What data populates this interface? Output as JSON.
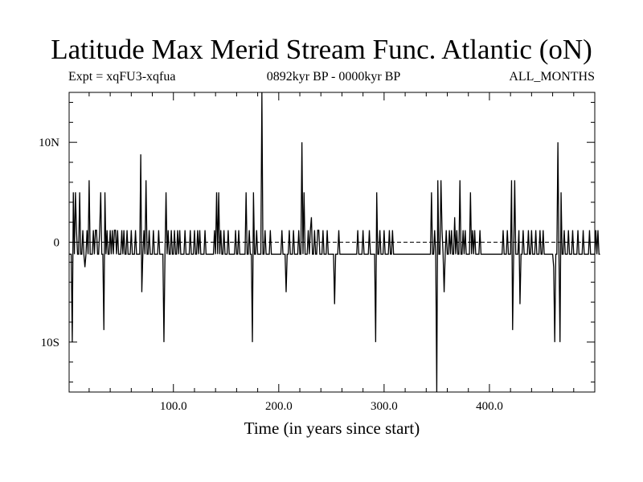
{
  "chart_data": {
    "type": "line",
    "title": "Latitude Max Merid Stream Func. Atlantic (oN)",
    "subtitle_left": "Expt = xqFU3-xqfua",
    "subtitle_center": "0892kyr BP - 0000kyr BP",
    "subtitle_right": "ALL_MONTHS",
    "xlabel": "Time (in years since start)",
    "ylabel": "",
    "xlim": [
      1,
      500
    ],
    "ylim": [
      -15,
      15
    ],
    "x_ticks": [
      100,
      200,
      300,
      400
    ],
    "x_tick_labels": [
      "100.0",
      "200.0",
      "300.0",
      "400.0"
    ],
    "y_ticks": [
      -10,
      0,
      10
    ],
    "y_tick_labels": [
      "10S",
      "0",
      "10N"
    ],
    "zero_line": true,
    "series": [
      {
        "x_start": 1,
        "x_step": 1,
        "values": [
          -1.2,
          -1.2,
          -1.2,
          -10,
          5,
          -1.2,
          5,
          1.2,
          -1.2,
          -1.2,
          5,
          -1.2,
          -1.2,
          1.2,
          -1.2,
          -2.5,
          -1.2,
          1.2,
          -1.2,
          6.2,
          -1.2,
          -1.2,
          -1.2,
          1.2,
          -1.2,
          1.2,
          1.2,
          -1.2,
          -1.2,
          1.2,
          5,
          -1.2,
          -1.2,
          -8.8,
          5,
          -1.2,
          1.2,
          -1.2,
          -1.2,
          1.2,
          -1.2,
          1.2,
          -1.2,
          1.2,
          1.2,
          -1.2,
          1.2,
          -1.2,
          -1.2,
          -1.2,
          1.2,
          -1.2,
          1.2,
          -1.2,
          -1.2,
          1.2,
          -1.2,
          -1.2,
          -1.2,
          1.2,
          -1.2,
          -1.2,
          -1.2,
          1.2,
          -1.2,
          -1.2,
          -1.2,
          -1.2,
          8.8,
          -5,
          -1.2,
          1.2,
          -1.2,
          6.2,
          -1.2,
          -1.2,
          1.2,
          -1.2,
          -1.2,
          -1.2,
          1.2,
          -1.2,
          -1.2,
          -1.2,
          -1.2,
          1.2,
          -1.2,
          -1.2,
          -1.2,
          -1.2,
          -10,
          -1.2,
          5,
          -1.2,
          1.2,
          -1.2,
          -1.2,
          1.2,
          -1.2,
          -1.2,
          1.2,
          -1.2,
          -1.2,
          1.2,
          -1.2,
          1.2,
          -1.2,
          -1.2,
          -1.2,
          -1.2,
          1.2,
          -1.2,
          -1.2,
          -1.2,
          -1.2,
          1.2,
          -1.2,
          -1.2,
          -1.2,
          1.2,
          -1.2,
          -1.2,
          1.2,
          -1.2,
          1.2,
          -1.2,
          -1.2,
          -1.2,
          -1.2,
          1.2,
          -1.2,
          -1.2,
          -1.2,
          -1.2,
          -1.2,
          -1.2,
          -1.2,
          -1.2,
          1.2,
          -1.2,
          5,
          -1.2,
          5,
          -1.2,
          1.2,
          -1.2,
          -1.2,
          1.2,
          -1.2,
          -1.2,
          -1.2,
          1.2,
          -1.2,
          -1.2,
          -1.2,
          -1.2,
          -1.2,
          -1.2,
          1.2,
          -1.2,
          -1.2,
          1.2,
          -1.2,
          -1.2,
          -1.2,
          -1.2,
          -1.2,
          -1.2,
          5,
          -1.2,
          -1.2,
          1.2,
          -1.2,
          -1.2,
          -10,
          5,
          -1.2,
          -1.2,
          1.2,
          -1.2,
          -1.2,
          -1.2,
          -1.2,
          15,
          -1.2,
          -1.2,
          1.2,
          -1.2,
          -1.2,
          -1.2,
          -1.2,
          1.2,
          -1.2,
          -1.2,
          -1.2,
          -1.2,
          -1.2,
          -1.2,
          -1.2,
          -1.2,
          -1.2,
          -1.2,
          1.2,
          -1.2,
          -1.2,
          -1.2,
          -5,
          -1.2,
          -1.2,
          1.2,
          -1.2,
          -1.2,
          -1.2,
          1.2,
          -1.2,
          -1.2,
          -1.2,
          -1.2,
          1.2,
          -1.2,
          -1.2,
          10,
          -1.2,
          5,
          -1.2,
          -1.2,
          -1.2,
          1.2,
          -1.2,
          1.2,
          2.5,
          -1.2,
          -1.2,
          1.2,
          -1.2,
          -1.2,
          1.2,
          1.2,
          -1.2,
          -1.2,
          -1.2,
          1.2,
          -1.2,
          -1.2,
          -1.2,
          1.2,
          -1.2,
          -1.2,
          -1.2,
          -1.2,
          -1.2,
          -1.2,
          -6.2,
          -1.2,
          -1.2,
          -1.2,
          1.2,
          -1.2,
          -1.2,
          -1.2,
          -1.2,
          -1.2,
          -1.2,
          -1.2,
          -1.2,
          -1.2,
          -1.2,
          -1.2,
          -1.2,
          -1.2,
          -1.2,
          -1.2,
          -1.2,
          -1.2,
          1.2,
          -1.2,
          -1.2,
          -1.2,
          -1.2,
          1.2,
          -1.2,
          -1.2,
          -1.2,
          -1.2,
          -1.2,
          1.2,
          -1.2,
          -1.2,
          -1.2,
          -1.2,
          -1.2,
          -10,
          5,
          -1.2,
          -1.2,
          1.2,
          -1.2,
          -1.2,
          -1.2,
          1.2,
          -1.2,
          -1.2,
          -1.2,
          -1.2,
          1.2,
          -1.2,
          -1.2,
          1.2,
          -1.2,
          -1.2,
          -1.2,
          -1.2,
          -1.2,
          -1.2,
          -1.2,
          -1.2,
          -1.2,
          -1.2,
          -1.2,
          -1.2,
          -1.2,
          -1.2,
          -1.2,
          -1.2,
          -1.2,
          -1.2,
          -1.2,
          -1.2,
          -1.2,
          -1.2,
          -1.2,
          -1.2,
          -1.2,
          -1.2,
          -1.2,
          -1.2,
          -1.2,
          -1.2,
          -1.2,
          -1.2,
          -1.2,
          -1.2,
          -1.2,
          -1.2,
          5,
          -1.2,
          -1.2,
          1.2,
          -1.2,
          -15,
          6.2,
          -1.2,
          -1.2,
          6.2,
          1.2,
          -1.2,
          -5,
          -1.2,
          1.2,
          -1.2,
          -1.2,
          1.2,
          -1.2,
          1.2,
          -1.2,
          -1.2,
          2.5,
          -1.2,
          1.2,
          -1.2,
          -1.2,
          6.2,
          -1.2,
          -1.2,
          1.2,
          -1.2,
          1.2,
          -1.2,
          -1.2,
          -1.2,
          -1.2,
          5,
          -1.2,
          1.2,
          -1.2,
          1.2,
          -1.2,
          -1.2,
          -1.2,
          -1.2,
          1.2,
          -1.2,
          -1.2,
          -1.2,
          -1.2,
          -1.2,
          -1.2,
          -1.2,
          -1.2,
          -1.2,
          -1.2,
          -1.2,
          -1.2,
          -1.2,
          -1.2,
          -1.2,
          -1.2,
          -1.2,
          -1.2,
          -1.2,
          -1.2,
          -1.2,
          1.2,
          -1.2,
          -1.2,
          -1.2,
          1.2,
          -1.2,
          -1.2,
          -1.2,
          6.2,
          -8.8,
          -1.2,
          6.2,
          -1.2,
          -1.2,
          -1.2,
          1.2,
          -6.2,
          -1.2,
          -1.2,
          1.2,
          -1.2,
          -1.2,
          -1.2,
          -1.2,
          1.2,
          -1.2,
          -1.2,
          1.2,
          -1.2,
          -1.2,
          -1.2,
          1.2,
          -1.2,
          -1.2,
          -1.2,
          1.2,
          -1.2,
          -1.2,
          1.2,
          -1.2,
          -1.2,
          -1.2,
          -1.2,
          -1.2,
          -1.2,
          -1.2,
          -1.2,
          -1.2,
          -2.5,
          -10,
          -1.2,
          -1.2,
          10,
          -1.2,
          -10,
          5,
          -1.2,
          -1.2,
          1.2,
          -1.2,
          -1.2,
          -1.2,
          1.2,
          -1.2,
          -1.2,
          -1.2,
          1.2,
          -1.2,
          -1.2,
          -1.2,
          -1.2,
          1.2,
          -1.2,
          -1.2,
          -1.2,
          -1.2,
          1.2,
          -1.2,
          -1.2,
          -1.2,
          -1.2,
          -1.2,
          1.2,
          -1.2,
          -1.2,
          -1.2,
          -1.2,
          -1.2,
          1.2,
          -1.2,
          1.2,
          -1.2,
          -1.2
        ]
      }
    ]
  }
}
